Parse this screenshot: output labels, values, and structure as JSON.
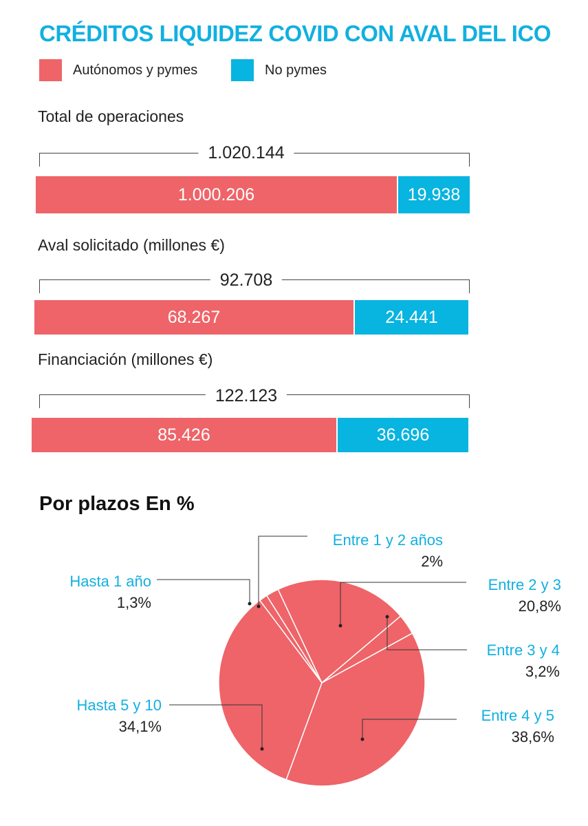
{
  "title": "CRÉDITOS LIQUIDEZ COVID CON AVAL DEL ICO",
  "legend": [
    {
      "label": "Autónomos y pymes",
      "color": "#ee6468"
    },
    {
      "label": "No pymes",
      "color": "#08b4e0"
    }
  ],
  "bars": {
    "total_ops": {
      "label": "Total de operaciones",
      "total": "1.020.144",
      "a": "1.000.206",
      "b": "19.938"
    },
    "aval": {
      "label": "Aval solicitado (millones €)",
      "total": "92.708",
      "a": "68.267",
      "b": "24.441"
    },
    "financiacion": {
      "label": "Financiación (millones €)",
      "total": "122.123",
      "a": "85.426",
      "b": "36.696"
    }
  },
  "pie": {
    "title": "Por plazos En %",
    "labels": {
      "hasta1": {
        "name": "Hasta 1 año",
        "pct": "1,3%"
      },
      "e1y2": {
        "name": "Entre 1 y 2 años",
        "pct": "2%"
      },
      "e2y3": {
        "name": "Entre 2 y 3",
        "pct": "20,8%"
      },
      "e3y4": {
        "name": "Entre 3 y 4",
        "pct": "3,2%"
      },
      "e4y5": {
        "name": "Entre 4 y 5",
        "pct": "38,6%"
      },
      "h5y10": {
        "name": "Hasta 5 y 10",
        "pct": "34,1%"
      }
    }
  },
  "chart_data": [
    {
      "type": "bar",
      "title": "CRÉDITOS LIQUIDEZ COVID CON AVAL DEL ICO",
      "orientation": "horizontal-stacked",
      "categories": [
        "Total de operaciones",
        "Aval solicitado (millones €)",
        "Financiación (millones €)"
      ],
      "totals": [
        1020144,
        92708,
        122123
      ],
      "series": [
        {
          "name": "Autónomos y pymes",
          "color": "#ee6468",
          "values": [
            1000206,
            68267,
            85426
          ]
        },
        {
          "name": "No pymes",
          "color": "#08b4e0",
          "values": [
            19938,
            24441,
            36696
          ]
        }
      ],
      "legend": "top-left"
    },
    {
      "type": "pie",
      "title": "Por plazos En %",
      "categories": [
        "Hasta 1 año",
        "Entre 1 y 2 años",
        "Entre 2 y 3",
        "Entre 3 y 4",
        "Entre 4 y 5",
        "Hasta 5 y 10"
      ],
      "values": [
        1.3,
        2,
        20.8,
        3.2,
        38.6,
        34.1
      ],
      "color": "#ee6468"
    }
  ]
}
